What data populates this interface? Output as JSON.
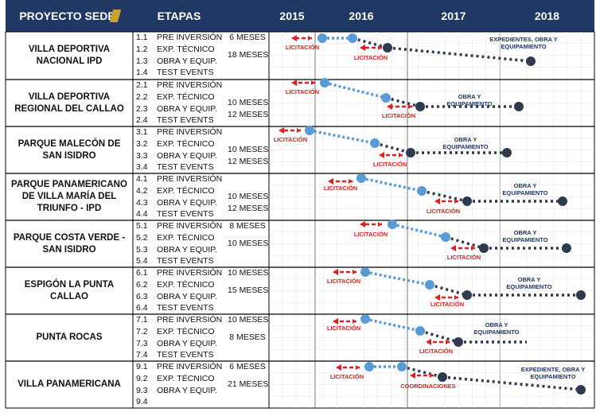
{
  "header": {
    "project_col": "PROYECTO SEDE",
    "stages_col": "ETAPAS",
    "years": [
      "2015",
      "2016",
      "2017",
      "2018"
    ]
  },
  "colors": {
    "header_bg": "#1f3864",
    "light_blue": "#5b9bd5",
    "dark_navy": "#2e3a4e",
    "red": "#e02020",
    "label_navy": "#1f3864"
  },
  "projects": [
    {
      "name": "VILLA DEPORTIVA NACIONAL IPD",
      "stages": [
        {
          "num": "1.1",
          "name": "PRE INVERSIÓN",
          "duration": "6 MESES"
        },
        {
          "num": "1.2",
          "name": "EXP. TÉCNICO",
          "duration": ""
        },
        {
          "num": "1.3",
          "name": "OBRA Y EQUIP.",
          "duration": "18 MESES"
        },
        {
          "num": "1.4",
          "name": "TEST EVENTS",
          "duration": ""
        }
      ],
      "labels": {
        "licit1": "LICITACIÓN",
        "licit2": "LICITACIÓN",
        "obra": "EXPEDIENTES, OBRA Y EQUIPAMIENTO"
      }
    },
    {
      "name": "VILLA DEPORTIVA REGIONAL DEL CALLAO",
      "stages": [
        {
          "num": "2.1",
          "name": "PRE INVERSIÓN",
          "duration": ""
        },
        {
          "num": "2.2",
          "name": "EXP. TÉCNICO",
          "duration": "10 MESES"
        },
        {
          "num": "2.3",
          "name": "OBRA Y EQUIP.",
          "duration": "12 MESES"
        },
        {
          "num": "2.4",
          "name": "TEST EVENTS",
          "duration": ""
        }
      ],
      "labels": {
        "licit1": "LICITACIÓN",
        "licit2": "LICITACIÓN",
        "obra": "OBRA Y EQUIPAMIENTO"
      }
    },
    {
      "name": "PARQUE MALECÓN DE SAN ISIDRO",
      "stages": [
        {
          "num": "3.1",
          "name": "PRE INVERSIÓN",
          "duration": ""
        },
        {
          "num": "3.2",
          "name": "EXP. TÉCNICO",
          "duration": "10 MESES"
        },
        {
          "num": "3.3",
          "name": "OBRA Y EQUIP.",
          "duration": "12 MESES"
        },
        {
          "num": "3.4",
          "name": "TEST EVENTS",
          "duration": ""
        }
      ],
      "labels": {
        "licit1": "LICITACIÓN",
        "licit2": "LICITACIÓN",
        "obra": "OBRA Y EQUIPAMIENTO"
      }
    },
    {
      "name": "PARQUE PANAMERICANO DE VILLA MARÍA DEL TRIUNFO - IPD",
      "stages": [
        {
          "num": "4.1",
          "name": "PRE INVERSIÓN",
          "duration": ""
        },
        {
          "num": "4.2",
          "name": "EXP. TÉCNICO",
          "duration": "10 MESES"
        },
        {
          "num": "4.3",
          "name": "OBRA Y EQUIP.",
          "duration": "12 MESES"
        },
        {
          "num": "4.4",
          "name": "TEST EVENTS",
          "duration": ""
        }
      ],
      "labels": {
        "licit1": "LICITACIÓN",
        "licit2": "LICITACIÓN",
        "obra": "OBRA Y EQUIPAMIENTO"
      }
    },
    {
      "name": "PARQUE COSTA VERDE - SAN ISIDRO",
      "stages": [
        {
          "num": "5.1",
          "name": "PRE INVERSIÓN",
          "duration": "8 MESES"
        },
        {
          "num": "5.2",
          "name": "EXP. TÉCNICO",
          "duration": ""
        },
        {
          "num": "5.3",
          "name": "OBRA Y EQUIP.",
          "duration": "10 MESES"
        },
        {
          "num": "5.4",
          "name": "TEST EVENTS",
          "duration": ""
        }
      ],
      "labels": {
        "licit1": "LICITACIÓN",
        "licit2": "LICITACIÓN",
        "obra": "OBRA Y EQUIPAMIENTO"
      }
    },
    {
      "name": "ESPIGÓN LA PUNTA CALLAO",
      "stages": [
        {
          "num": "6.1",
          "name": "PRE INVERSIÓN",
          "duration": "10 MESES"
        },
        {
          "num": "6.2",
          "name": "EXP. TÉCNICO",
          "duration": ""
        },
        {
          "num": "6.3",
          "name": "OBRA Y EQUIP.",
          "duration": "15 MESES"
        },
        {
          "num": "6.4",
          "name": "TEST EVENTS",
          "duration": ""
        }
      ],
      "labels": {
        "licit1": "LICITACIÓN",
        "licit2": "LICITACIÓN",
        "obra": "OBRA Y EQUIPAMIENTO"
      }
    },
    {
      "name": "PUNTA ROCAS",
      "stages": [
        {
          "num": "7.1",
          "name": "PRE INVERSIÓN",
          "duration": "10 MESES"
        },
        {
          "num": "7.2",
          "name": "EXP. TÉCNICO",
          "duration": ""
        },
        {
          "num": "7.3",
          "name": "OBRA Y EQUIP.",
          "duration": "8 MESES"
        },
        {
          "num": "7.4",
          "name": "TEST EVENTS",
          "duration": ""
        }
      ],
      "labels": {
        "licit1": "LICITACIÓN",
        "licit2": "LICITACIÓN",
        "obra": "OBRA Y EQUIPAMIENTO"
      }
    },
    {
      "name": "VILLA PANAMERICANA",
      "stages": [
        {
          "num": "9.1",
          "name": "PRE INVERSIÓN",
          "duration": "6 MESES"
        },
        {
          "num": "9.2",
          "name": "EXP. TÉCNICO",
          "duration": ""
        },
        {
          "num": "9.3",
          "name": "OBRA Y EQUIP.",
          "duration": "21 MESES"
        },
        {
          "num": "9.4",
          "name": "",
          "duration": ""
        }
      ],
      "labels": {
        "licit1": "LICITACIÓN",
        "licit2": "COORDINACIONES",
        "obra": "EXPEDIENTE, OBRA Y EQUIPAMIENTO"
      }
    }
  ]
}
